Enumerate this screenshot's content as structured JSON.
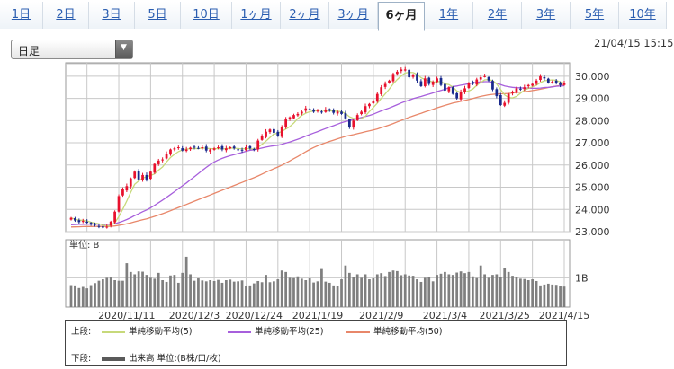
{
  "tabs": [
    {
      "label": "1日"
    },
    {
      "label": "2日"
    },
    {
      "label": "3日"
    },
    {
      "label": "5日"
    },
    {
      "label": "10日"
    },
    {
      "label": "1ヶ月"
    },
    {
      "label": "2ヶ月"
    },
    {
      "label": "3ヶ月"
    },
    {
      "label": "6ヶ月",
      "active": true
    },
    {
      "label": "1年"
    },
    {
      "label": "2年"
    },
    {
      "label": "3年"
    },
    {
      "label": "5年"
    },
    {
      "label": "10年"
    }
  ],
  "period_select": {
    "value": "日足"
  },
  "timestamp": "21/04/15 15:15",
  "colors": {
    "up": "#e8112d",
    "down": "#1a2a8c",
    "ma5": "#c7d97a",
    "ma25": "#a75fdc",
    "ma50": "#e8876a",
    "volume": "#7f7f7f",
    "grid": "#c8c8c8"
  },
  "chart_data": {
    "type": "candlestick",
    "ylim": [
      23000,
      30600
    ],
    "y_ticks": [
      "23,000",
      "24,000",
      "25,000",
      "26,000",
      "27,000",
      "28,000",
      "29,000",
      "30,000"
    ],
    "y_tick_values": [
      23000,
      24000,
      25000,
      26000,
      27000,
      28000,
      29000,
      30000
    ],
    "x_labels": [
      "2020/11/11",
      "2020/12/3",
      "2020/12/24",
      "2021/1/19",
      "2021/2/9",
      "2021/3/4",
      "2021/3/25",
      "2021/4/15"
    ],
    "x_label_index": [
      14,
      31,
      46,
      62,
      78,
      94,
      109,
      124
    ],
    "closes": [
      23620,
      23500,
      23430,
      23480,
      23400,
      23320,
      23300,
      23250,
      23180,
      23220,
      23450,
      23900,
      24600,
      24900,
      25050,
      25400,
      25700,
      25350,
      25550,
      25350,
      25700,
      26050,
      26200,
      26250,
      26500,
      26700,
      26750,
      26800,
      26650,
      26700,
      26780,
      26800,
      26750,
      26800,
      26650,
      26700,
      26750,
      26800,
      26700,
      26750,
      26800,
      26750,
      26700,
      26650,
      26800,
      26750,
      26700,
      27100,
      27300,
      27500,
      27600,
      27450,
      27300,
      27700,
      28050,
      28150,
      28250,
      28300,
      28400,
      28550,
      28500,
      28400,
      28450,
      28400,
      28500,
      28450,
      28350,
      28400,
      28300,
      28100,
      27700,
      28000,
      28250,
      28400,
      28650,
      28750,
      28900,
      29200,
      29500,
      29650,
      29800,
      30100,
      30200,
      30300,
      30300,
      29950,
      30050,
      29800,
      29550,
      29900,
      29650,
      29750,
      29900,
      29600,
      29350,
      29500,
      29200,
      29000,
      29300,
      29450,
      29700,
      29650,
      29850,
      29950,
      30000,
      29800,
      29400,
      29100,
      28700,
      28800,
      29200,
      29300,
      29450,
      29400,
      29500,
      29600,
      29650,
      29800,
      30000,
      29900,
      29700,
      29750,
      29700,
      29600,
      29680
    ],
    "vol_ylim": [
      0,
      2.3
    ],
    "vol_ticks": [
      "1B"
    ],
    "vol_tick_values": [
      1
    ],
    "volumes": [
      0.75,
      0.74,
      0.65,
      0.69,
      0.64,
      0.75,
      0.82,
      0.9,
      0.95,
      1.0,
      1.01,
      0.92,
      0.9,
      0.9,
      1.5,
      1.2,
      1.12,
      1.22,
      1.21,
      1.1,
      1.0,
      0.97,
      1.17,
      0.92,
      0.86,
      1.08,
      1.1,
      0.83,
      1.17,
      1.72,
      1.12,
      0.9,
      0.98,
      0.91,
      0.88,
      0.92,
      0.89,
      0.93,
      0.83,
      0.92,
      0.94,
      0.87,
      0.88,
      0.91,
      0.72,
      0.74,
      0.81,
      0.89,
      0.85,
      1.1,
      0.85,
      0.88,
      0.95,
      1.25,
      1.2,
      1.0,
      0.99,
      1.05,
      0.97,
      0.92,
      0.98,
      0.84,
      0.88,
      1.3,
      0.87,
      0.83,
      0.74,
      0.73,
      0.95,
      1.42,
      1.17,
      1.04,
      1.12,
      1.0,
      1.12,
      0.95,
      0.98,
      1.12,
      1.16,
      1.06,
      1.2,
      1.25,
      1.23,
      1.09,
      1.12,
      1.08,
      1.07,
      0.95,
      0.86,
      1.0,
      1.02,
      0.88,
      1.1,
      1.14,
      1.2,
      1.12,
      1.1,
      1.18,
      1.22,
      1.16,
      1.2,
      1.05,
      0.99,
      1.42,
      1.12,
      1.0,
      1.1,
      1.12,
      1.02,
      1.32,
      1.2,
      1.07,
      1.02,
      0.97,
      0.96,
      0.92,
      0.95,
      0.89,
      0.74,
      0.77,
      0.8,
      0.77,
      0.76,
      0.73,
      0.7
    ]
  },
  "axis": {
    "vol_unit_label": "単位: B"
  },
  "legend": {
    "upper_label": "上段:",
    "lower_label": "下段:",
    "ma5": "単純移動平均(5)",
    "ma25": "単純移動平均(25)",
    "ma50": "単純移動平均(50)",
    "volume": "出来高 単位:(B株/口/枚)"
  }
}
